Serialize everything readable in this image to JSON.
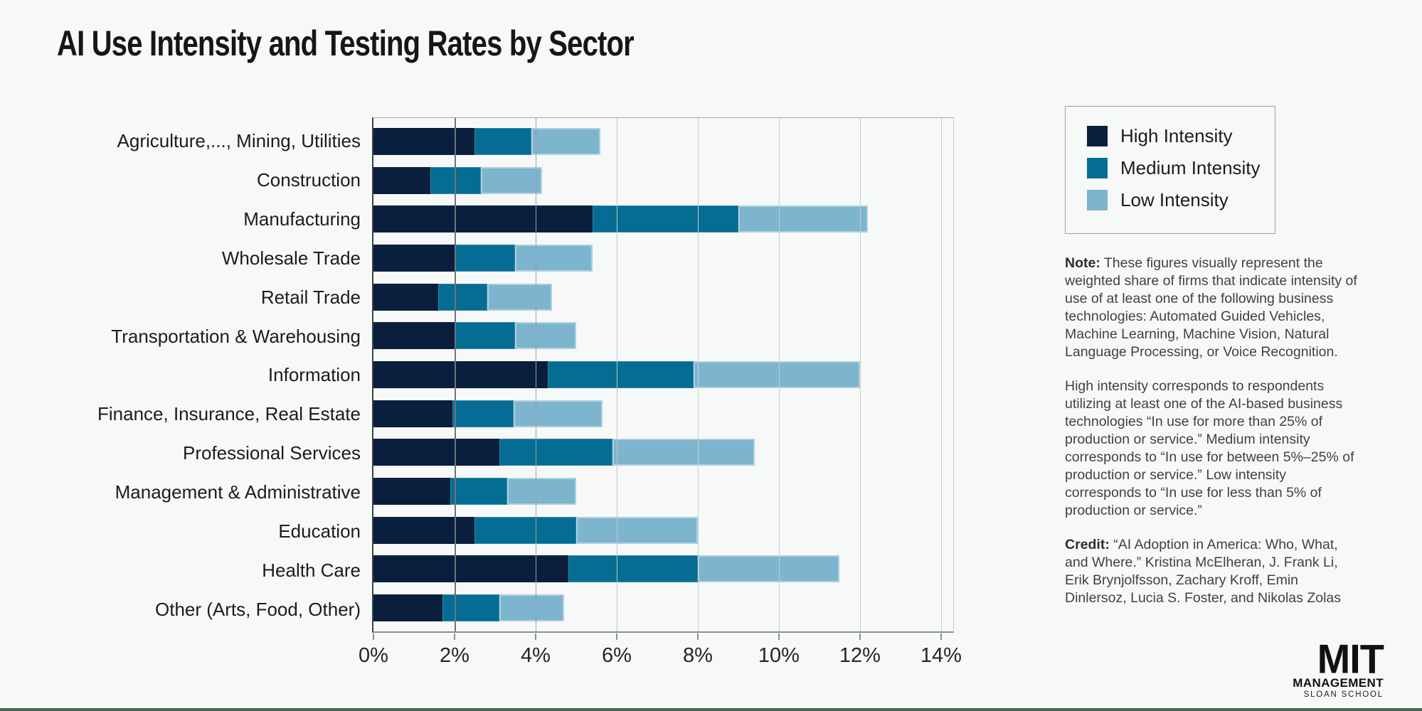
{
  "page": {
    "background": "#f7f9f8",
    "bottom_bar_color": "#476552"
  },
  "title": "AI Use Intensity and Testing Rates by Sector",
  "chart_data": {
    "type": "bar",
    "orientation": "horizontal",
    "stacked": true,
    "title": "AI Use Intensity and Testing Rates by Sector",
    "categories": [
      "Agriculture,..., Mining, Utilities",
      "Construction",
      "Manufacturing",
      "Wholesale Trade",
      "Retail Trade",
      "Transportation & Warehousing",
      "Information",
      "Finance, Insurance, Real Estate",
      "Professional Services",
      "Management & Administrative",
      "Education",
      "Health Care",
      "Other (Arts, Food, Other)"
    ],
    "series": [
      {
        "name": "High Intensity",
        "color": "#0a1f3e",
        "values": [
          2.5,
          1.4,
          5.4,
          2.0,
          1.6,
          2.0,
          4.3,
          1.95,
          3.1,
          1.9,
          2.5,
          4.8,
          1.7
        ]
      },
      {
        "name": "Medium Intensity",
        "color": "#056d93",
        "values": [
          1.4,
          1.25,
          3.6,
          1.5,
          1.2,
          1.5,
          3.6,
          1.5,
          2.8,
          1.4,
          2.5,
          3.2,
          1.4
        ]
      },
      {
        "name": "Low Intensity",
        "color": "#7db4ce",
        "values": [
          1.7,
          1.5,
          3.2,
          1.9,
          1.6,
          1.5,
          4.1,
          2.2,
          3.5,
          1.7,
          3.0,
          3.5,
          1.6
        ]
      }
    ],
    "x_tick_labels": [
      "0%",
      "2%",
      "4%",
      "6%",
      "8%",
      "10%",
      "12%",
      "14%"
    ],
    "x_tick_values": [
      0,
      2,
      4,
      6,
      8,
      10,
      12,
      14
    ],
    "xlim": [
      0,
      14.3
    ],
    "xlabel": "",
    "ylabel": "",
    "grid": "vertical",
    "legend_position": "top-right"
  },
  "legend": {
    "items": [
      {
        "label": "High Intensity",
        "color": "#0a1f3e"
      },
      {
        "label": "Medium Intensity",
        "color": "#056d93"
      },
      {
        "label": "Low Intensity",
        "color": "#7db4ce"
      }
    ]
  },
  "notes": {
    "note_label": "Note:",
    "note_text": " These figures visually represent the weighted share of firms that indicate intensity of use of at least one of the following business technologies: Automated Guided Vehicles, Machine Learning, Machine Vision, Natural Language Processing, or Voice Recognition.",
    "intensity_text": "High intensity corresponds to respondents utilizing at least one of the AI-based business technologies “In use for more than 25% of production or service.” Medium intensity corresponds to “In use for between 5%–25% of production or service.” Low intensity corresponds to “In use for less than 5% of production or service.”",
    "credit_label": "Credit:",
    "credit_text": " “AI Adoption in America: Who, What, and Where.” Kristina McElheran, J. Frank Li, Erik Brynjolfsson, Zachary Kroff, Emin Dinlersoz, Lucia S. Foster, and Nikolas Zolas"
  },
  "logo": {
    "line1": "MIT",
    "line2": "MANAGEMENT",
    "line3": "SLOAN SCHOOL"
  }
}
